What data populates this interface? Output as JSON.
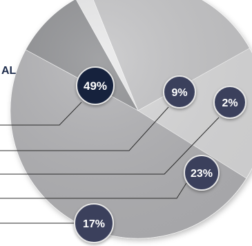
{
  "chart_data": {
    "type": "pie",
    "title_fragment": "AL",
    "slices": [
      {
        "value": 49,
        "label": "49%",
        "color": "#b1b1b4"
      },
      {
        "value": 9,
        "label": "9%",
        "color": "#8e8f92"
      },
      {
        "value": 2,
        "label": "2%",
        "color": "#e9e9ea"
      },
      {
        "value": 23,
        "label": "23%",
        "color": "#c4c4c6"
      },
      {
        "value": 17,
        "label": "17%",
        "color": "#d9d9da"
      }
    ],
    "badge_color_dark": "#14213d",
    "badge_color": "#3a3f5c",
    "leader_color": "#2b2b2b"
  }
}
